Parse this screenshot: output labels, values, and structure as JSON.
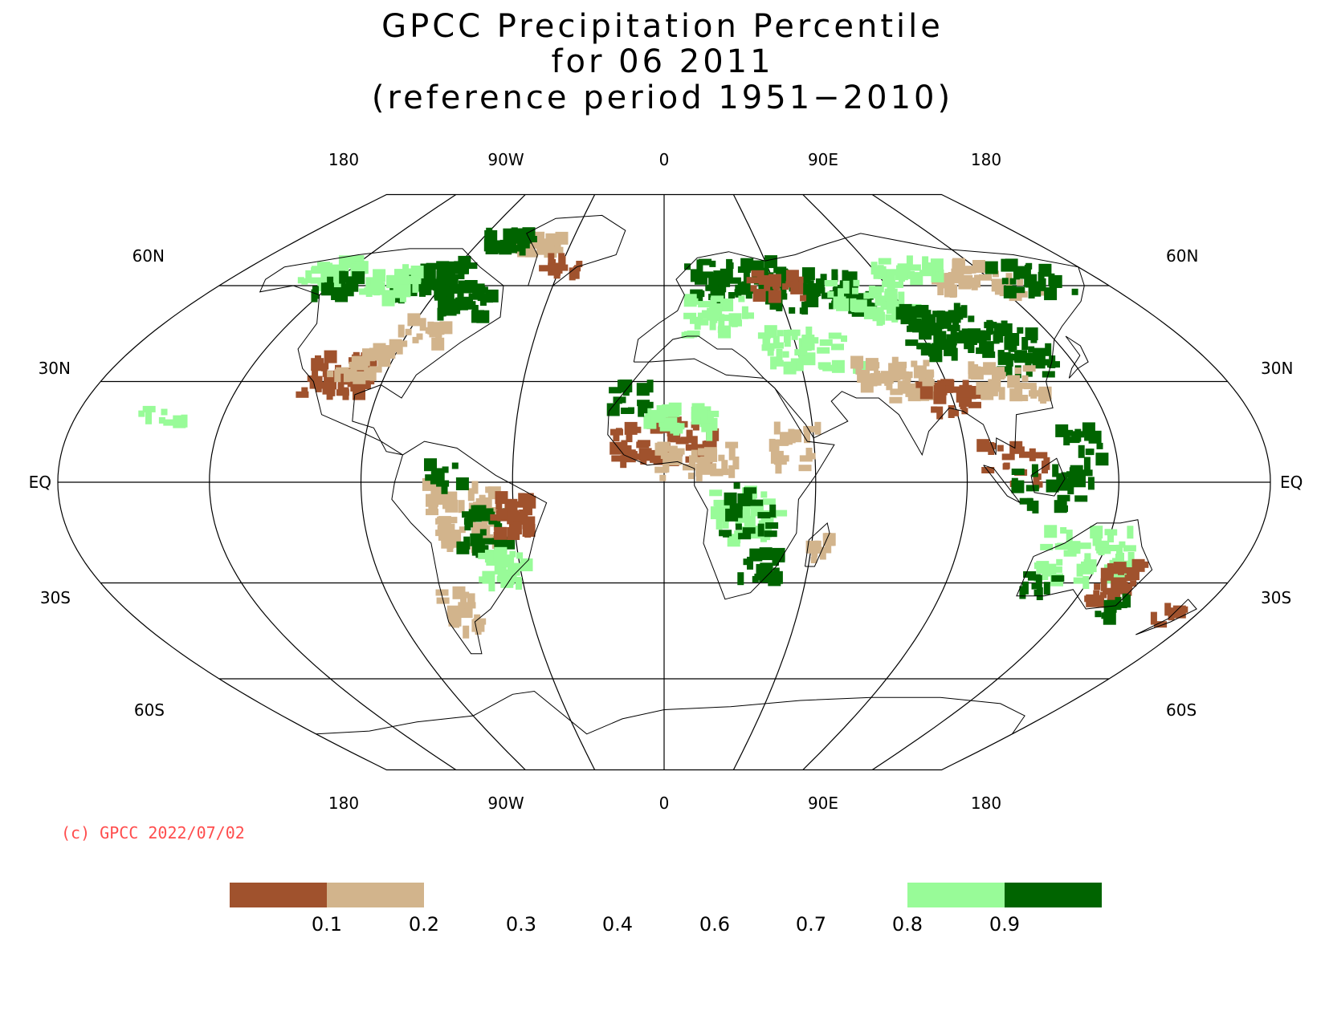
{
  "title": {
    "line1": "GPCC Precipitation Percentile",
    "line2": "for 06 2011",
    "line3": "(reference period 1951−2010)"
  },
  "map": {
    "projection": "robinson",
    "longitude_labels": [
      "180",
      "90W",
      "0",
      "90E",
      "180"
    ],
    "latitude_labels": [
      "60N",
      "30N",
      "EQ",
      "30S",
      "60S"
    ],
    "credit": "(c) GPCC 2022/07/02"
  },
  "legend": {
    "ticks": [
      "0.1",
      "0.2",
      "0.3",
      "0.4",
      "0.6",
      "0.7",
      "0.8",
      "0.9"
    ],
    "classes": [
      {
        "range": "< 0.1",
        "color": "#a0522d"
      },
      {
        "range": "0.1 - 0.2",
        "color": "#d2b48c"
      },
      {
        "range": "0.2 - 0.8",
        "color": "#ffffff"
      },
      {
        "range": "0.8 - 0.9",
        "color": "#98fb98"
      },
      {
        "range": "> 0.9",
        "color": "#006400"
      }
    ]
  }
}
